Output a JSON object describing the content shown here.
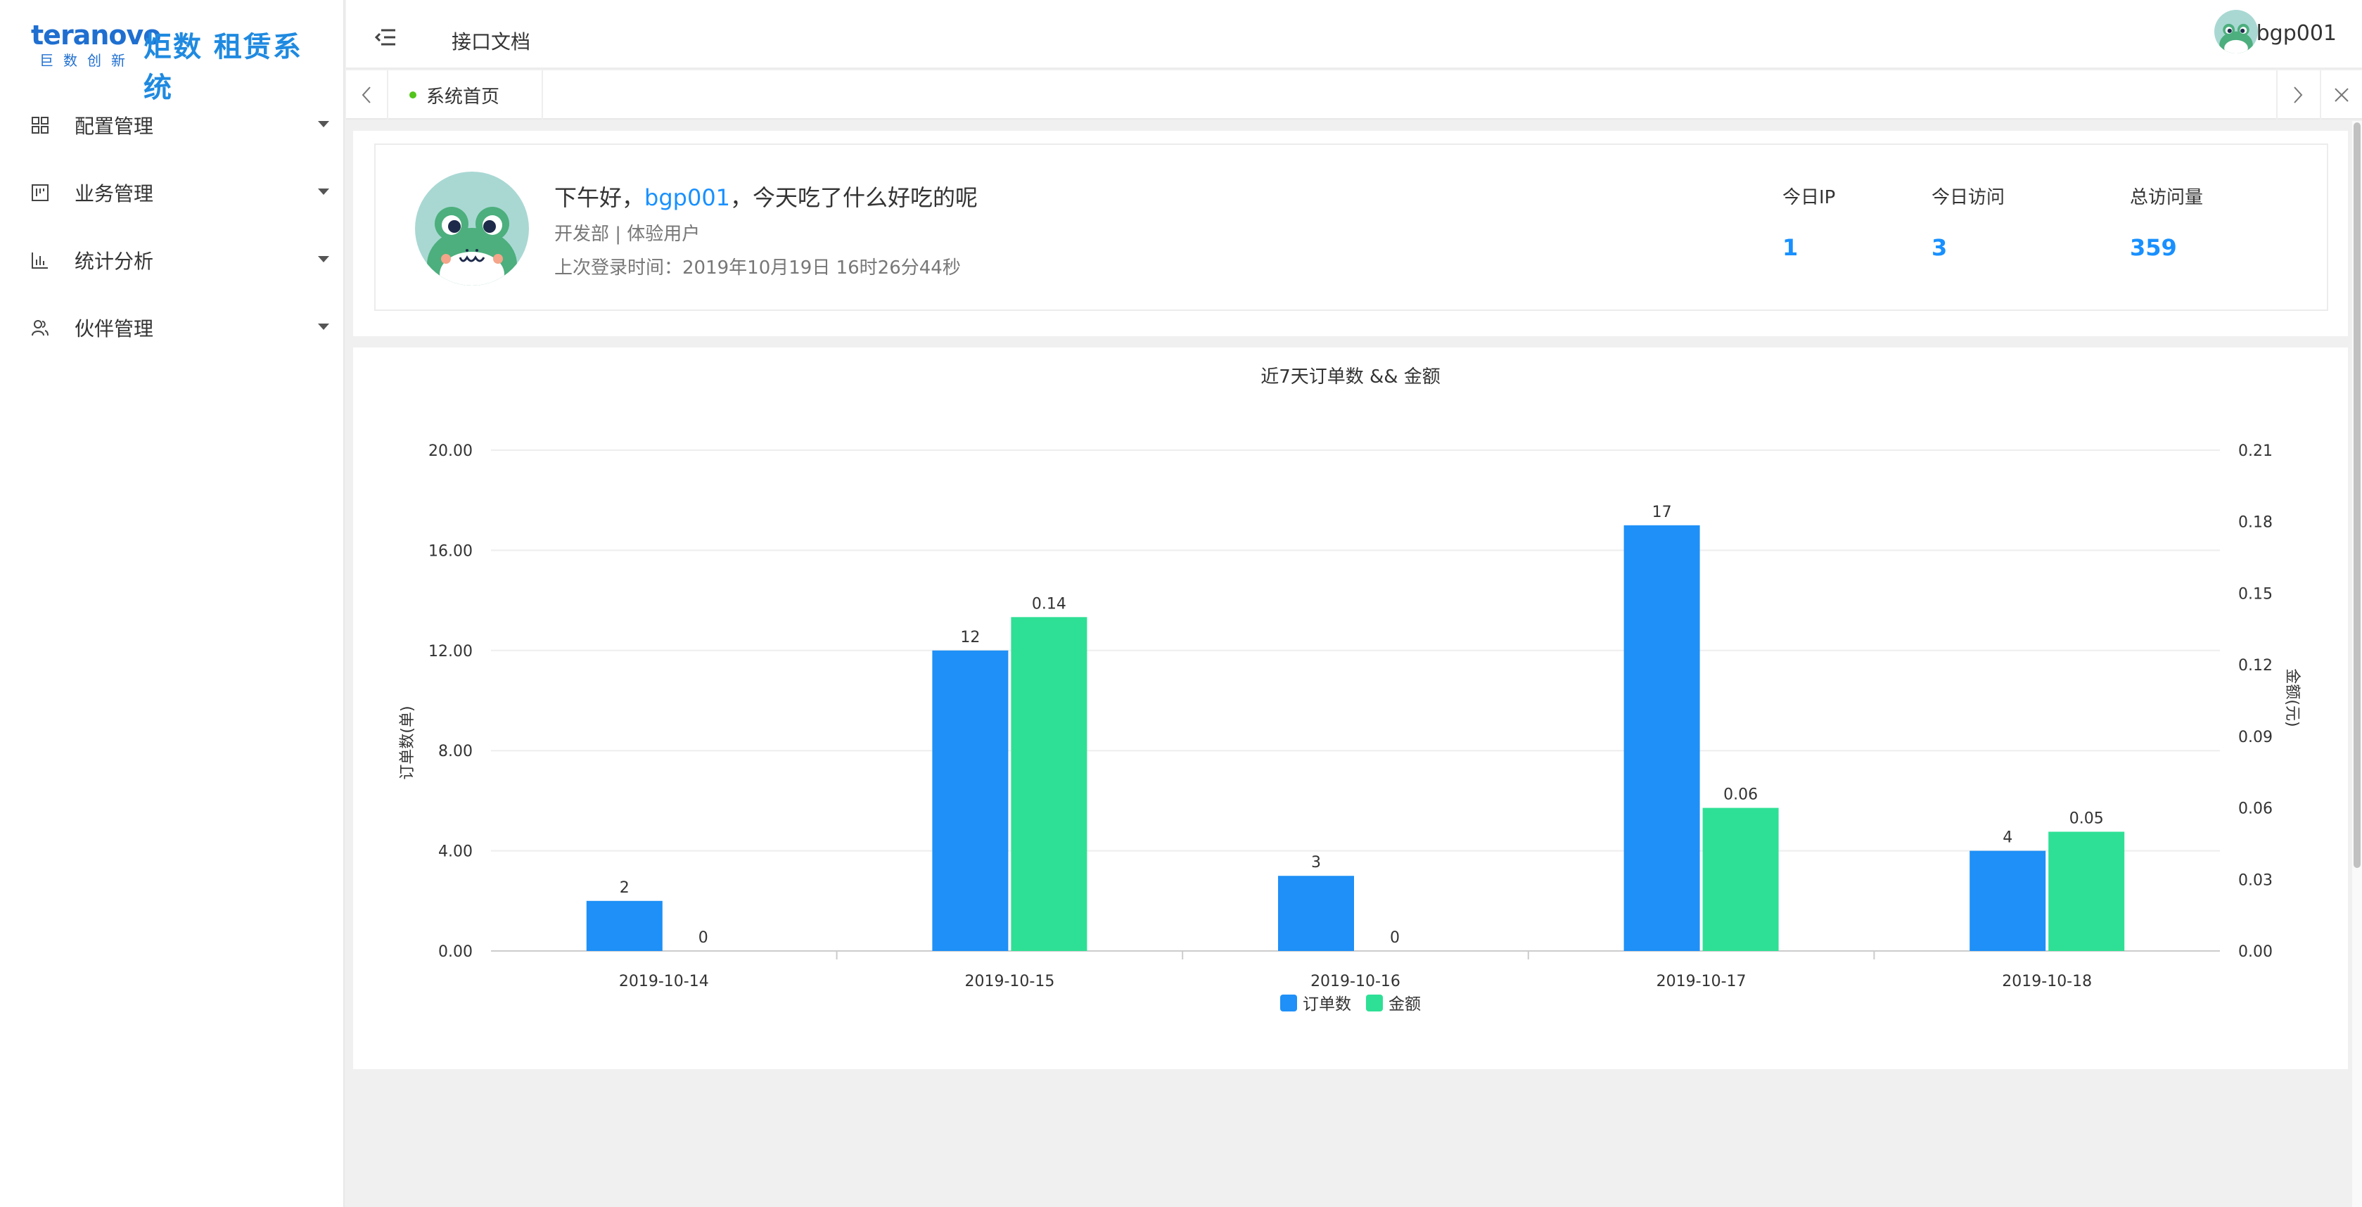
{
  "brand": {
    "logo_en": "teranovo",
    "logo_cn_small": "巨数创新",
    "logo_cn": "炬数 租赁系统"
  },
  "sidebar": {
    "items": [
      {
        "label": "配置管理",
        "icon": "grid-icon"
      },
      {
        "label": "业务管理",
        "icon": "board-icon"
      },
      {
        "label": "统计分析",
        "icon": "bar-chart-icon"
      },
      {
        "label": "伙伴管理",
        "icon": "users-icon"
      }
    ]
  },
  "header": {
    "link": "接口文档",
    "username": "bgp001"
  },
  "tabs": {
    "home": "系统首页"
  },
  "welcome": {
    "greeting_prefix": "下午好，",
    "greeting_user": "bgp001",
    "greeting_suffix": "，今天吃了什么好吃的呢",
    "dept": "开发部 | 体验用户",
    "last_login": "上次登录时间：2019年10月19日 16时26分44秒",
    "stats": [
      {
        "label": "今日IP",
        "value": "1"
      },
      {
        "label": "今日访问",
        "value": "3"
      },
      {
        "label": "总访问量",
        "value": "359"
      }
    ]
  },
  "colors": {
    "accent": "#1890ff",
    "series_orders": "#1e90f7",
    "series_amount": "#2ee095"
  },
  "chart_data": {
    "type": "bar",
    "title": "近7天订单数 && 金额",
    "categories": [
      "2019-10-14",
      "2019-10-15",
      "2019-10-16",
      "2019-10-17",
      "2019-10-18"
    ],
    "series": [
      {
        "name": "订单数",
        "values": [
          2,
          12,
          3,
          17,
          4
        ],
        "labels": [
          "2",
          "12",
          "3",
          "17",
          "4"
        ],
        "axis": "left"
      },
      {
        "name": "金额",
        "values": [
          0,
          0.14,
          0,
          0.06,
          0.05
        ],
        "labels": [
          "0",
          "0.14",
          "0",
          "0.06",
          "0.05"
        ],
        "axis": "right"
      }
    ],
    "ylabel": "订单数(单)",
    "ylabel_right": "金额(元)",
    "ylim": [
      0,
      20
    ],
    "ylim_right": [
      0,
      0.21
    ],
    "yticks": [
      "0.00",
      "4.00",
      "8.00",
      "12.00",
      "16.00",
      "20.00"
    ],
    "yticks_right": [
      "0.00",
      "0.03",
      "0.06",
      "0.09",
      "0.12",
      "0.15",
      "0.18",
      "0.21"
    ],
    "grid": true,
    "legend_position": "bottom-center"
  }
}
